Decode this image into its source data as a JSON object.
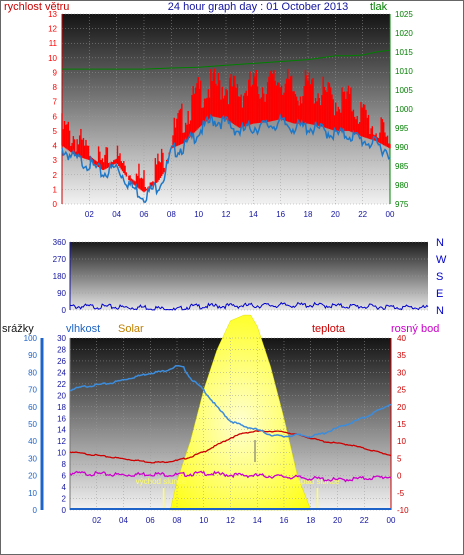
{
  "header": {
    "title": "24 hour graph day : 01 October 2013",
    "left_label": "rychlost větru",
    "right_label": "tlak"
  },
  "colors": {
    "wind_speed": "#ff0000",
    "wind_avg": "#1e78c8",
    "pressure": "#008000",
    "direction": "#0000cc",
    "humidity": "#3c8cdc",
    "temperature": "#cc0000",
    "dew_point": "#cc00cc",
    "solar": "#ffff00",
    "rain": "#1e64c8",
    "label_solar": "#c08000",
    "label_blue": "#1e64c8",
    "label_red": "#cc0000",
    "label_magenta": "#cc00cc"
  },
  "chart_data": [
    {
      "type": "line",
      "title": "24 hour graph day : 01 October 2013",
      "ylabel": "rychlost větru",
      "y2label": "tlak",
      "x_ticks": [
        "02",
        "04",
        "06",
        "08",
        "10",
        "12",
        "14",
        "16",
        "18",
        "20",
        "22",
        "00"
      ],
      "ylim": [
        0,
        13
      ],
      "y_ticks": [
        0,
        1,
        2,
        3,
        4,
        5,
        6,
        7,
        8,
        9,
        10,
        11,
        12,
        13
      ],
      "y2lim": [
        975,
        1025
      ],
      "y2_ticks": [
        975,
        980,
        985,
        990,
        995,
        1000,
        1005,
        1010,
        1015,
        1020,
        1025
      ],
      "grid": true,
      "series": [
        {
          "key": "gust",
          "hours": [
            0,
            1,
            2,
            3,
            4,
            5,
            6,
            7,
            7.5,
            8,
            9,
            10,
            11,
            12,
            13,
            14,
            15,
            16,
            17,
            18,
            19,
            20,
            21,
            22,
            23,
            24
          ],
          "values": [
            5.5,
            5.0,
            3.5,
            3.0,
            3.5,
            2.5,
            2.0,
            3.0,
            3.5,
            5.0,
            6.5,
            8.0,
            8.5,
            8.5,
            8.0,
            8.5,
            8.5,
            9.0,
            8.0,
            8.5,
            8.0,
            7.5,
            7.5,
            6.5,
            5.5,
            4.5
          ]
        },
        {
          "key": "average",
          "hours": [
            0,
            1,
            2,
            3,
            4,
            5,
            6,
            7,
            7.5,
            8,
            9,
            10,
            11,
            12,
            13,
            14,
            15,
            16,
            17,
            18,
            19,
            20,
            21,
            22,
            23,
            24
          ],
          "values": [
            4.0,
            3.3,
            3.0,
            2.3,
            2.8,
            1.5,
            0.8,
            1.5,
            2.2,
            3.8,
            4.2,
            5.2,
            6.0,
            5.8,
            5.2,
            5.5,
            5.6,
            5.8,
            5.5,
            5.5,
            5.3,
            5.0,
            5.0,
            4.6,
            4.3,
            3.8
          ]
        },
        {
          "key": "pressure",
          "hours": [
            0,
            2,
            4,
            6,
            8,
            10,
            12,
            14,
            16,
            18,
            19,
            20,
            21,
            22,
            23,
            24
          ],
          "values": [
            1010.5,
            1010.5,
            1010.5,
            1010.5,
            1010.8,
            1011.0,
            1011.5,
            1012.0,
            1012.5,
            1013.0,
            1013.5,
            1014.0,
            1014.0,
            1014.2,
            1015.0,
            1015.5
          ]
        }
      ]
    },
    {
      "type": "line",
      "labels_right": [
        "N",
        "W",
        "S",
        "E",
        "N"
      ],
      "x_ticks": [
        "02",
        "04",
        "06",
        "08",
        "10",
        "12",
        "14",
        "16",
        "18",
        "20",
        "22",
        "00"
      ],
      "ylim": [
        0,
        360
      ],
      "y_ticks": [
        0,
        90,
        180,
        270,
        360
      ],
      "series": [
        {
          "key": "direction",
          "hours": [
            0,
            2,
            4,
            5,
            6,
            7,
            8,
            10,
            12,
            14,
            16,
            18,
            20,
            22,
            24
          ],
          "values": [
            25,
            25,
            20,
            22,
            15,
            5,
            25,
            28,
            30,
            32,
            33,
            28,
            25,
            22,
            18
          ]
        }
      ]
    },
    {
      "type": "line",
      "labels": {
        "rain": "srážky",
        "humidity": "vlhkost",
        "solar": "Solar",
        "temperature": "teplota",
        "dew_point": "rosný bod"
      },
      "annotations": {
        "sunrise": "východ slunce",
        "sunset": "západ slunce"
      },
      "sunrise_hour": 7.0,
      "sunset_hour": 18.5,
      "x_ticks": [
        "02",
        "04",
        "06",
        "08",
        "10",
        "12",
        "14",
        "16",
        "18",
        "20",
        "22",
        "00"
      ],
      "ylim_rain": [
        0,
        100
      ],
      "rain_ticks": [
        0,
        10,
        20,
        30,
        40,
        50,
        60,
        70,
        80,
        90,
        100
      ],
      "ylim_humidity": [
        0,
        30
      ],
      "humidity_ticks": [
        0,
        2,
        4,
        6,
        8,
        10,
        12,
        14,
        16,
        18,
        20,
        22,
        24,
        26,
        28,
        30
      ],
      "ylim_temp": [
        -10,
        40
      ],
      "temp_ticks": [
        -10,
        -5,
        0,
        5,
        10,
        15,
        20,
        25,
        30,
        35,
        40
      ],
      "grid": true,
      "series": [
        {
          "key": "humidity",
          "hours": [
            0,
            1,
            2,
            3,
            4,
            5,
            6,
            7,
            8,
            8.5,
            9,
            10,
            11,
            12,
            13,
            14,
            15,
            16,
            17,
            18,
            19,
            20,
            21,
            22,
            23,
            24
          ],
          "values": [
            70,
            72,
            73,
            74,
            76,
            78,
            80,
            81,
            84,
            83,
            77,
            70,
            60,
            52,
            49,
            47,
            44,
            43,
            44,
            43,
            45,
            48,
            51,
            54,
            58,
            62
          ]
        },
        {
          "key": "temperature",
          "hours": [
            0,
            1,
            2,
            3,
            4,
            5,
            6,
            7,
            8,
            9,
            10,
            11,
            12,
            13,
            14,
            15,
            16,
            17,
            18,
            19,
            20,
            21,
            22,
            23,
            24
          ],
          "values": [
            7.0,
            6.5,
            6.0,
            5.5,
            5.0,
            4.5,
            4.0,
            4.0,
            4.5,
            5.5,
            7.0,
            9.0,
            11.0,
            12.5,
            13.0,
            13.0,
            12.8,
            12.0,
            11.0,
            10.0,
            9.5,
            9.0,
            8.0,
            7.0,
            6.0
          ]
        },
        {
          "key": "dew_point",
          "hours": [
            0,
            2,
            4,
            6,
            8,
            10,
            12,
            14,
            16,
            18,
            20,
            22,
            24
          ],
          "values": [
            1.0,
            0.8,
            0.5,
            0.8,
            0.5,
            1.0,
            0.5,
            0.3,
            0.0,
            -0.5,
            -1.0,
            -0.5,
            0.0
          ]
        },
        {
          "key": "solar",
          "hours": [
            7.5,
            8,
            9,
            10,
            11,
            12,
            13,
            13.5,
            14,
            15,
            16,
            17,
            18
          ],
          "values": [
            0,
            5,
            12,
            21,
            28,
            33,
            34,
            34,
            32,
            25,
            16,
            6,
            0
          ]
        }
      ]
    }
  ]
}
